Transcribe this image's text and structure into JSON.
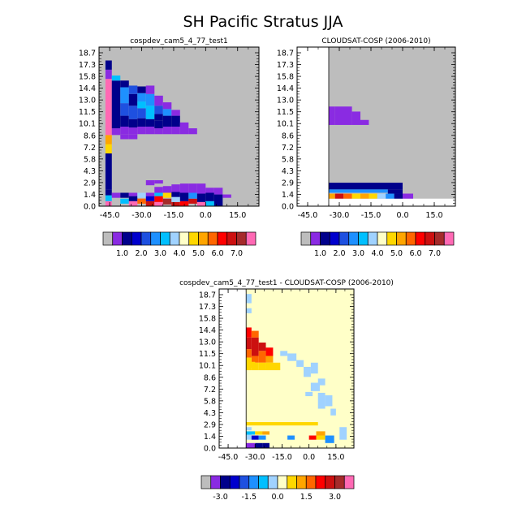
{
  "figure": {
    "title": "SH Pacific Stratus JJA"
  },
  "colors": {
    "missing": "#bdbdbd",
    "plot_border": "#000000",
    "lev_pal": [
      "#bdbdbd",
      "#8a2be2",
      "#00008b",
      "#0000cd",
      "#1e50e0",
      "#1e90ff",
      "#00bfff",
      "#a0d2ff",
      "#ffffc8",
      "#ffd700",
      "#ffa500",
      "#ff6600",
      "#ff0000",
      "#cc1010",
      "#a52a2a",
      "#ff69b4"
    ],
    "diff_pal": [
      "#bdbdbd",
      "#8a2be2",
      "#00008b",
      "#0000cd",
      "#1e50e0",
      "#1e90ff",
      "#00bfff",
      "#a0d2ff",
      "#ffffc8",
      "#ffd700",
      "#ffa500",
      "#ff6600",
      "#ff0000",
      "#cc1010",
      "#a52a2a",
      "#ff69b4"
    ]
  },
  "chart_data": [
    {
      "type": "heatmap",
      "title": "cospdev_cam5_4_77_test1",
      "xlabel": "",
      "ylabel": "",
      "x_ticks": [
        -45.0,
        -30.0,
        -15.0,
        0.0,
        15.0
      ],
      "x_tick_labels": [
        "-45.0",
        "-30.0",
        "-15.0",
        "0.0",
        "15.0"
      ],
      "y_tick_labels": [
        "0.0",
        "1.4",
        "2.9",
        "4.3",
        "5.8",
        "7.2",
        "8.6",
        "10.1",
        "11.5",
        "13.0",
        "14.4",
        "15.8",
        "17.3",
        "18.7"
      ],
      "xlim": [
        -50.0,
        25.0
      ],
      "ylim": [
        0.0,
        19.0
      ],
      "background": "missing",
      "colorbar_labels": [
        "1.0",
        "2.0",
        "3.0",
        "4.0",
        "5.0",
        "6.0",
        "7.0"
      ],
      "cells": [
        [
          -47,
          -44,
          0.0,
          0.6,
          15
        ],
        [
          -47,
          -44,
          0.6,
          1.3,
          6
        ],
        [
          -47,
          -44,
          1.3,
          2.0,
          2
        ],
        [
          -47,
          -44,
          2.0,
          6.3,
          2
        ],
        [
          -47,
          -44,
          6.3,
          7.4,
          9
        ],
        [
          -47,
          -44,
          7.4,
          8.5,
          10
        ],
        [
          -47,
          -44,
          8.5,
          15.2,
          15
        ],
        [
          -47,
          -44,
          15.2,
          16.3,
          1
        ],
        [
          -47,
          -44,
          16.3,
          17.4,
          2
        ],
        [
          -44,
          -40,
          1.0,
          1.6,
          1
        ],
        [
          -44,
          -40,
          8.5,
          9.3,
          1
        ],
        [
          -44,
          -40,
          9.3,
          15.0,
          2
        ],
        [
          -44,
          -40,
          15.0,
          15.6,
          6
        ],
        [
          -40,
          -36,
          0.3,
          0.9,
          6
        ],
        [
          -40,
          -36,
          1.0,
          1.6,
          2
        ],
        [
          -40,
          -36,
          8.0,
          8.6,
          1
        ],
        [
          -40,
          -36,
          8.6,
          9.5,
          1
        ],
        [
          -40,
          -36,
          9.5,
          10.8,
          2
        ],
        [
          -40,
          -36,
          10.8,
          12.3,
          4
        ],
        [
          -40,
          -36,
          12.3,
          14.2,
          5
        ],
        [
          -40,
          -36,
          14.2,
          15.0,
          2
        ],
        [
          -36,
          -32,
          0.0,
          0.6,
          15
        ],
        [
          -36,
          -32,
          0.6,
          1.2,
          2
        ],
        [
          -36,
          -32,
          1.2,
          1.6,
          1
        ],
        [
          -36,
          -32,
          8.0,
          8.6,
          1
        ],
        [
          -36,
          -32,
          8.6,
          9.4,
          1
        ],
        [
          -36,
          -32,
          9.4,
          10.4,
          2
        ],
        [
          -36,
          -32,
          10.4,
          12.0,
          4
        ],
        [
          -36,
          -32,
          12.0,
          13.4,
          2
        ],
        [
          -36,
          -32,
          13.4,
          14.4,
          4
        ],
        [
          -32,
          -28,
          0.3,
          0.9,
          11
        ],
        [
          -32,
          -28,
          1.0,
          1.6,
          7
        ],
        [
          -32,
          -28,
          8.6,
          9.5,
          1
        ],
        [
          -32,
          -28,
          9.5,
          10.5,
          2
        ],
        [
          -32,
          -28,
          10.5,
          11.7,
          4
        ],
        [
          -32,
          -28,
          11.7,
          12.5,
          6
        ],
        [
          -32,
          -28,
          12.5,
          13.5,
          5
        ],
        [
          -32,
          -28,
          13.5,
          14.3,
          2
        ],
        [
          -28,
          -24,
          0.0,
          0.6,
          13
        ],
        [
          -28,
          -24,
          0.6,
          1.2,
          3
        ],
        [
          -28,
          -24,
          1.2,
          1.6,
          1
        ],
        [
          -28,
          -24,
          2.5,
          3.1,
          1
        ],
        [
          -28,
          -24,
          8.6,
          9.5,
          1
        ],
        [
          -28,
          -24,
          9.5,
          10.4,
          2
        ],
        [
          -28,
          -24,
          10.4,
          12.0,
          6
        ],
        [
          -28,
          -24,
          12.0,
          13.4,
          5
        ],
        [
          -28,
          -24,
          13.4,
          14.4,
          1
        ],
        [
          -24,
          -20,
          0.0,
          0.5,
          15
        ],
        [
          -24,
          -20,
          0.5,
          1.2,
          12
        ],
        [
          -24,
          -20,
          1.2,
          1.6,
          6
        ],
        [
          -24,
          -20,
          1.6,
          2.3,
          1
        ],
        [
          -24,
          -20,
          2.7,
          3.1,
          1
        ],
        [
          -24,
          -20,
          8.6,
          9.3,
          1
        ],
        [
          -24,
          -20,
          9.3,
          10.2,
          2
        ],
        [
          -24,
          -20,
          10.2,
          11.0,
          2
        ],
        [
          -24,
          -20,
          11.0,
          12.0,
          4
        ],
        [
          -24,
          -20,
          12.0,
          13.2,
          1
        ],
        [
          -20,
          -16,
          0.2,
          0.9,
          14
        ],
        [
          -20,
          -16,
          1.0,
          1.6,
          9
        ],
        [
          -20,
          -16,
          1.6,
          2.4,
          1
        ],
        [
          -20,
          -16,
          8.6,
          9.5,
          1
        ],
        [
          -20,
          -16,
          9.5,
          10.8,
          2
        ],
        [
          -20,
          -16,
          10.8,
          11.6,
          5
        ],
        [
          -20,
          -16,
          11.6,
          12.4,
          1
        ],
        [
          -16,
          -12,
          0.0,
          0.5,
          13
        ],
        [
          -16,
          -12,
          0.5,
          1.1,
          7
        ],
        [
          -16,
          -12,
          1.1,
          1.7,
          2
        ],
        [
          -16,
          -12,
          1.7,
          2.6,
          1
        ],
        [
          -16,
          -12,
          8.6,
          9.5,
          1
        ],
        [
          -16,
          -12,
          9.5,
          10.8,
          2
        ],
        [
          -16,
          -12,
          10.8,
          11.5,
          1
        ],
        [
          -12,
          -8,
          0.0,
          0.6,
          12
        ],
        [
          -12,
          -8,
          0.6,
          1.6,
          2
        ],
        [
          -12,
          -8,
          1.6,
          2.7,
          1
        ],
        [
          -12,
          -8,
          8.6,
          10.0,
          1
        ],
        [
          -8,
          -4,
          0.3,
          0.9,
          13
        ],
        [
          -8,
          -4,
          0.9,
          1.6,
          5
        ],
        [
          -8,
          -4,
          1.6,
          2.7,
          1
        ],
        [
          -8,
          -4,
          8.6,
          9.3,
          1
        ],
        [
          -4,
          0,
          0.0,
          0.5,
          15
        ],
        [
          -4,
          0,
          0.5,
          1.5,
          2
        ],
        [
          -4,
          0,
          1.5,
          2.7,
          1
        ],
        [
          0,
          4,
          0.0,
          0.6,
          6
        ],
        [
          0,
          4,
          0.6,
          1.6,
          2
        ],
        [
          0,
          4,
          1.6,
          2.2,
          1
        ],
        [
          4,
          8,
          0.0,
          1.4,
          2
        ],
        [
          4,
          8,
          1.4,
          2.2,
          1
        ],
        [
          8,
          12,
          1.0,
          1.4,
          1
        ]
      ]
    },
    {
      "type": "heatmap",
      "title": "CLOUDSAT-COSP (2006-2010)",
      "xlabel": "",
      "ylabel": "",
      "x_ticks": [
        -45.0,
        -30.0,
        -15.0,
        0.0,
        15.0
      ],
      "x_tick_labels": [
        "-45.0",
        "-30.0",
        "-15.0",
        "0.0",
        "15.0"
      ],
      "y_tick_labels": [
        "0.0",
        "1.4",
        "2.9",
        "4.3",
        "5.8",
        "7.2",
        "8.6",
        "10.1",
        "11.5",
        "13.0",
        "14.4",
        "15.8",
        "17.3",
        "18.7"
      ],
      "xlim": [
        -50.0,
        25.0
      ],
      "ylim": [
        0.0,
        19.0
      ],
      "background": "missing",
      "blank_region": [
        [
          -50.0,
          -35.0,
          0.0,
          19.0
        ],
        [
          -35.0,
          25.0,
          0.0,
          0.9
        ]
      ],
      "colorbar_labels": [
        "1.0",
        "2.0",
        "3.0",
        "4.0",
        "5.0",
        "6.0",
        "7.0"
      ],
      "cells": [
        [
          -35,
          -32,
          9.7,
          11.9,
          1
        ],
        [
          -32,
          -24,
          9.7,
          11.9,
          1
        ],
        [
          -24,
          -20,
          9.7,
          11.3,
          1
        ],
        [
          -20,
          -16,
          9.7,
          10.3,
          1
        ],
        [
          -35,
          0,
          2.0,
          2.8,
          2
        ],
        [
          -35,
          -7,
          1.6,
          2.0,
          5
        ],
        [
          -35,
          -32,
          0.9,
          1.5,
          10
        ],
        [
          -32,
          -28,
          0.9,
          1.5,
          13
        ],
        [
          -28,
          -24,
          0.9,
          1.5,
          11
        ],
        [
          -24,
          -20,
          0.9,
          1.5,
          9
        ],
        [
          -20,
          -16,
          0.9,
          1.5,
          10
        ],
        [
          -16,
          -12,
          0.9,
          1.5,
          9
        ],
        [
          -12,
          -8,
          0.9,
          1.5,
          7
        ],
        [
          -8,
          -4,
          0.9,
          1.5,
          5
        ],
        [
          -4,
          0,
          0.9,
          1.5,
          2
        ],
        [
          0,
          5,
          0.9,
          1.5,
          1
        ],
        [
          -7,
          0,
          1.5,
          2.0,
          2
        ]
      ]
    },
    {
      "type": "heatmap",
      "title": "cospdev_cam5_4_77_test1 - CLOUDSAT-COSP (2006-2010)",
      "xlabel": "",
      "ylabel": "",
      "x_ticks": [
        -45.0,
        -30.0,
        -15.0,
        0.0,
        15.0
      ],
      "x_tick_labels": [
        "-45.0",
        "-30.0",
        "-15.0",
        "0.0",
        "15.0"
      ],
      "y_tick_labels": [
        "0.0",
        "1.4",
        "2.9",
        "4.3",
        "5.8",
        "7.2",
        "8.6",
        "10.1",
        "11.5",
        "13.0",
        "14.4",
        "15.8",
        "17.3",
        "18.7"
      ],
      "xlim": [
        -50.0,
        25.0
      ],
      "ylim": [
        0.0,
        19.0
      ],
      "background": "#ffffc8",
      "blank_region": [
        [
          -50.0,
          -35.0,
          0.0,
          19.0
        ]
      ],
      "colorbar_labels": [
        "-3.0",
        "-1.5",
        "0.0",
        "1.5",
        "3.0"
      ],
      "cells": [
        [
          -35,
          -32,
          13.2,
          14.4,
          12
        ],
        [
          -32,
          -28,
          13.2,
          14.0,
          11
        ],
        [
          -35,
          -32,
          11.8,
          13.2,
          13
        ],
        [
          -32,
          -28,
          11.0,
          13.2,
          13
        ],
        [
          -28,
          -24,
          11.6,
          12.6,
          13
        ],
        [
          -24,
          -20,
          11.0,
          12.0,
          12
        ],
        [
          -35,
          -32,
          10.8,
          11.8,
          11
        ],
        [
          -32,
          -28,
          10.2,
          11.0,
          11
        ],
        [
          -28,
          -24,
          10.2,
          11.6,
          11
        ],
        [
          -24,
          -20,
          10.2,
          11.0,
          10
        ],
        [
          -35,
          -32,
          9.3,
          10.8,
          9
        ],
        [
          -32,
          -28,
          9.3,
          10.2,
          9
        ],
        [
          -28,
          -24,
          9.3,
          10.2,
          9
        ],
        [
          -24,
          -16,
          9.3,
          10.2,
          9
        ],
        [
          -35,
          -32,
          17.3,
          18.4,
          7
        ],
        [
          -35,
          -32,
          16.1,
          16.7,
          7
        ],
        [
          -35,
          -30,
          9.6,
          10.3,
          9
        ],
        [
          -16,
          -12,
          11.0,
          11.6,
          7
        ],
        [
          -12,
          -7,
          10.4,
          11.3,
          7
        ],
        [
          -7,
          -3,
          9.7,
          10.5,
          7
        ],
        [
          -3,
          1,
          8.5,
          9.7,
          7
        ],
        [
          1,
          5,
          8.9,
          10.2,
          7
        ],
        [
          1,
          6,
          6.8,
          7.8,
          7
        ],
        [
          5,
          9,
          7.5,
          8.3,
          7
        ],
        [
          5,
          9,
          4.7,
          6.6,
          7
        ],
        [
          9,
          13,
          5.0,
          6.3,
          7
        ],
        [
          -2,
          2,
          6.2,
          6.7,
          7
        ],
        [
          12,
          15,
          3.9,
          4.7,
          7
        ],
        [
          -35,
          5,
          2.7,
          3.1,
          9
        ],
        [
          -35,
          -32,
          2.1,
          2.5,
          7
        ],
        [
          -35,
          -30,
          1.6,
          2.0,
          6
        ],
        [
          -30,
          -26,
          1.6,
          2.0,
          9
        ],
        [
          -26,
          -22,
          1.6,
          2.0,
          10
        ],
        [
          -35,
          -32,
          1.0,
          1.6,
          7
        ],
        [
          -32,
          -28,
          1.0,
          1.5,
          3
        ],
        [
          -28,
          -24,
          1.0,
          1.5,
          5
        ],
        [
          -12,
          -8,
          1.0,
          1.5,
          5
        ],
        [
          0,
          4,
          1.0,
          1.5,
          12
        ],
        [
          4,
          9,
          1.0,
          1.5,
          9
        ],
        [
          4,
          9,
          1.5,
          2.0,
          10
        ],
        [
          9,
          14,
          0.6,
          1.5,
          5
        ],
        [
          -35,
          -30,
          0.0,
          0.6,
          1
        ],
        [
          -30,
          -26,
          0.0,
          0.6,
          2
        ],
        [
          -26,
          -22,
          0.0,
          0.6,
          2
        ],
        [
          17,
          21,
          1.0,
          2.5,
          7
        ]
      ]
    }
  ]
}
